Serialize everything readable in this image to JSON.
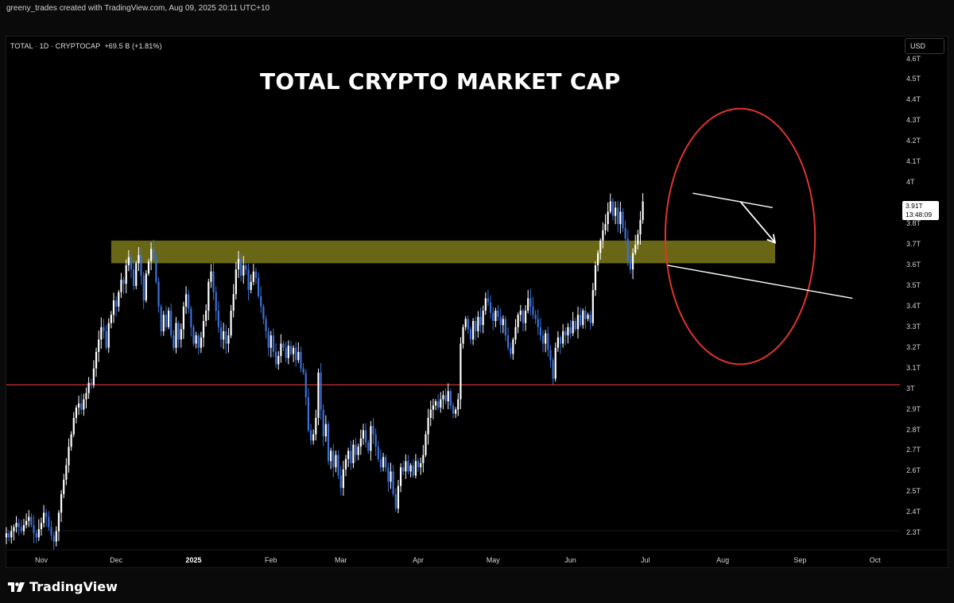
{
  "attribution": "greeny_trades created with TradingView.com, Aug 09, 2025 20:11 UTC+10",
  "symbol_line": "TOTAL · 1D · CRYPTOCAP",
  "change_text": "+69.5 B (+1.81%)",
  "currency_button": "USD",
  "brand": "TradingView",
  "last_price_label": "3.91T",
  "countdown_label": "13:48:09",
  "colors": {
    "up": "#ffffff",
    "down": "#3d6fd8",
    "support_line": "#e0342f",
    "zone": "#8c8a1c",
    "circle": "#e0342f",
    "trendline": "#ffffff"
  },
  "icons": {
    "logo": "tradingview-logo-icon"
  },
  "chart_data": {
    "type": "candlestick",
    "title": "TOTAL CRYPTO MARKET CAP",
    "unit": "T",
    "ylim": [
      2.22,
      4.71
    ],
    "y_ticks": [
      "4.6T",
      "4.5T",
      "4.4T",
      "4.3T",
      "4.2T",
      "4.1T",
      "4T",
      "3.8T",
      "3.7T",
      "3.6T",
      "3.5T",
      "3.4T",
      "3.3T",
      "3.2T",
      "3.1T",
      "3T",
      "2.9T",
      "2.8T",
      "2.7T",
      "2.6T",
      "2.5T",
      "2.4T",
      "2.3T"
    ],
    "y_tick_values": [
      4.6,
      4.5,
      4.4,
      4.3,
      4.2,
      4.1,
      4.0,
      3.8,
      3.7,
      3.6,
      3.5,
      3.4,
      3.3,
      3.2,
      3.1,
      3.0,
      2.9,
      2.8,
      2.7,
      2.6,
      2.5,
      2.4,
      2.3
    ],
    "x_range": [
      "2024-10-18",
      "2025-10-11"
    ],
    "x_ticks": [
      {
        "label": "Nov",
        "date": "2024-11-01",
        "bold": false
      },
      {
        "label": "Dec",
        "date": "2024-12-01",
        "bold": false
      },
      {
        "label": "2025",
        "date": "2025-01-01",
        "bold": true
      },
      {
        "label": "Feb",
        "date": "2025-02-01",
        "bold": false
      },
      {
        "label": "Mar",
        "date": "2025-03-01",
        "bold": false
      },
      {
        "label": "Apr",
        "date": "2025-04-01",
        "bold": false
      },
      {
        "label": "May",
        "date": "2025-05-01",
        "bold": false
      },
      {
        "label": "Jun",
        "date": "2025-06-01",
        "bold": false
      },
      {
        "label": "Jul",
        "date": "2025-07-01",
        "bold": false
      },
      {
        "label": "Aug",
        "date": "2025-08-01",
        "bold": false
      },
      {
        "label": "Sep",
        "date": "2025-09-01",
        "bold": false
      },
      {
        "label": "Oct",
        "date": "2025-10-01",
        "bold": false
      }
    ],
    "close_series_start": "2024-10-18",
    "close_series": [
      2.3,
      2.28,
      2.31,
      2.33,
      2.35,
      2.33,
      2.31,
      2.34,
      2.36,
      2.38,
      2.34,
      2.3,
      2.28,
      2.32,
      2.35,
      2.4,
      2.38,
      2.33,
      2.29,
      2.26,
      2.31,
      2.4,
      2.49,
      2.56,
      2.63,
      2.72,
      2.78,
      2.86,
      2.91,
      2.93,
      2.9,
      2.95,
      2.98,
      3.03,
      3.02,
      3.1,
      3.18,
      3.24,
      3.3,
      3.28,
      3.2,
      3.32,
      3.36,
      3.43,
      3.4,
      3.47,
      3.53,
      3.51,
      3.6,
      3.64,
      3.58,
      3.5,
      3.61,
      3.65,
      3.55,
      3.43,
      3.56,
      3.62,
      3.68,
      3.63,
      3.52,
      3.4,
      3.28,
      3.36,
      3.3,
      3.38,
      3.26,
      3.2,
      3.32,
      3.24,
      3.29,
      3.4,
      3.46,
      3.39,
      3.3,
      3.22,
      3.26,
      3.2,
      3.25,
      3.33,
      3.38,
      3.52,
      3.57,
      3.47,
      3.38,
      3.3,
      3.24,
      3.28,
      3.22,
      3.26,
      3.38,
      3.46,
      3.58,
      3.63,
      3.55,
      3.6,
      3.58,
      3.48,
      3.52,
      3.57,
      3.54,
      3.45,
      3.4,
      3.34,
      3.28,
      3.2,
      3.26,
      3.18,
      3.12,
      3.16,
      3.22,
      3.2,
      3.15,
      3.21,
      3.17,
      3.2,
      3.14,
      3.18,
      3.1,
      3.08,
      2.96,
      2.8,
      2.75,
      2.78,
      2.86,
      3.08,
      2.9,
      2.77,
      2.83,
      2.65,
      2.7,
      2.62,
      2.68,
      2.58,
      2.52,
      2.61,
      2.66,
      2.7,
      2.64,
      2.73,
      2.68,
      2.72,
      2.76,
      2.8,
      2.74,
      2.7,
      2.82,
      2.78,
      2.72,
      2.66,
      2.62,
      2.67,
      2.62,
      2.55,
      2.6,
      2.49,
      2.42,
      2.53,
      2.62,
      2.6,
      2.65,
      2.6,
      2.63,
      2.58,
      2.65,
      2.62,
      2.64,
      2.68,
      2.78,
      2.86,
      2.9,
      2.92,
      2.94,
      2.91,
      2.95,
      2.97,
      2.94,
      2.99,
      2.92,
      2.88,
      2.9,
      2.95,
      3.22,
      3.3,
      3.34,
      3.29,
      3.24,
      3.33,
      3.28,
      3.35,
      3.31,
      3.38,
      3.44,
      3.42,
      3.37,
      3.33,
      3.38,
      3.35,
      3.31,
      3.34,
      3.26,
      3.2,
      3.17,
      3.24,
      3.3,
      3.36,
      3.38,
      3.32,
      3.38,
      3.44,
      3.4,
      3.36,
      3.34,
      3.3,
      3.26,
      3.22,
      3.27,
      3.19,
      3.14,
      3.05,
      3.2,
      3.25,
      3.22,
      3.28,
      3.26,
      3.3,
      3.27,
      3.33,
      3.29,
      3.36,
      3.31,
      3.38,
      3.34,
      3.36,
      3.32,
      3.48,
      3.6,
      3.66,
      3.72,
      3.77,
      3.8,
      3.86,
      3.91,
      3.84,
      3.88,
      3.8,
      3.86,
      3.78,
      3.73,
      3.62,
      3.58,
      3.66,
      3.7,
      3.75,
      3.82,
      3.91
    ],
    "series": [
      {
        "values_ref": "close_series"
      }
    ],
    "annotations": [
      {
        "type": "horizontal_line",
        "y": 3.02,
        "color": "#e0342f"
      },
      {
        "type": "zone",
        "y0": 3.61,
        "y1": 3.72,
        "x0": "2024-11-29",
        "x1": "2025-08-22",
        "color": "#8c8a1c"
      },
      {
        "type": "ellipse",
        "center_date": "2025-08-08",
        "center_y": 3.74,
        "radius_days": 30,
        "radius_y": 0.62,
        "color": "#e0342f"
      },
      {
        "type": "trendline",
        "from": [
          "2025-07-20",
          3.95
        ],
        "to": [
          "2025-08-21",
          3.88
        ]
      },
      {
        "type": "trendline",
        "from": [
          "2025-07-10",
          3.6
        ],
        "to": [
          "2025-09-22",
          3.44
        ]
      },
      {
        "type": "arrow",
        "from": [
          "2025-08-08",
          3.91
        ],
        "to": [
          "2025-08-22",
          3.71
        ]
      }
    ]
  }
}
